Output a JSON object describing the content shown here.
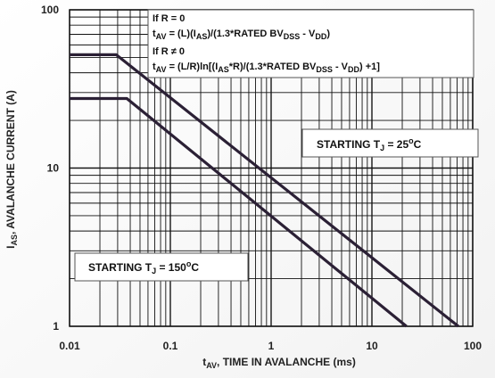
{
  "chart_data": {
    "type": "line",
    "x_scale": "log",
    "y_scale": "log",
    "xlim": [
      0.01,
      100
    ],
    "ylim": [
      1,
      100
    ],
    "x_ticks": [
      {
        "value": 0.01,
        "label": "0.01"
      },
      {
        "value": 0.1,
        "label": "0.1"
      },
      {
        "value": 1,
        "label": "1"
      },
      {
        "value": 10,
        "label": "10"
      },
      {
        "value": 100,
        "label": "100"
      }
    ],
    "y_ticks": [
      {
        "value": 1,
        "label": "1"
      },
      {
        "value": 10,
        "label": "10"
      },
      {
        "value": 100,
        "label": "100"
      }
    ],
    "xlabel": {
      "main": "t",
      "sub": "AV",
      "rest": ", TIME IN AVALANCHE (ms)"
    },
    "ylabel": {
      "main": "I",
      "sub": "AS",
      "rest": ", AVALANCHE CURRENT (A)"
    },
    "grid": true,
    "series": [
      {
        "key": "tj25",
        "points": [
          [
            0.01,
            52
          ],
          [
            0.029,
            52
          ],
          [
            72,
            1
          ]
        ]
      },
      {
        "key": "tj150",
        "points": [
          [
            0.01,
            27.5
          ],
          [
            0.037,
            27.5
          ],
          [
            22,
            1
          ]
        ]
      }
    ],
    "annotations": {
      "formula": {
        "l1": "If R = 0",
        "l2a": "t",
        "l2b": "AV",
        "l2c": " = (L)(I",
        "l2d": "AS",
        "l2e": ")/(1.3*RATED BV",
        "l2f": "DSS",
        "l2g": " - V",
        "l2h": "DD",
        "l2i": ")",
        "l3": "If R ≠ 0",
        "l4a": "t",
        "l4b": "AV",
        "l4c": " = (L/R)ln[(I",
        "l4d": "AS",
        "l4e": "*R)/(1.3*RATED BV",
        "l4f": "DSS",
        "l4g": " - V",
        "l4h": "DD",
        "l4i": ") +1]"
      },
      "tj25": {
        "a": "STARTING T",
        "b": "J",
        "c": " = 25",
        "d": "o",
        "e": "C"
      },
      "tj150": {
        "a": "STARTING T",
        "b": "J",
        "c": " = 150",
        "d": "o",
        "e": "C"
      }
    }
  }
}
